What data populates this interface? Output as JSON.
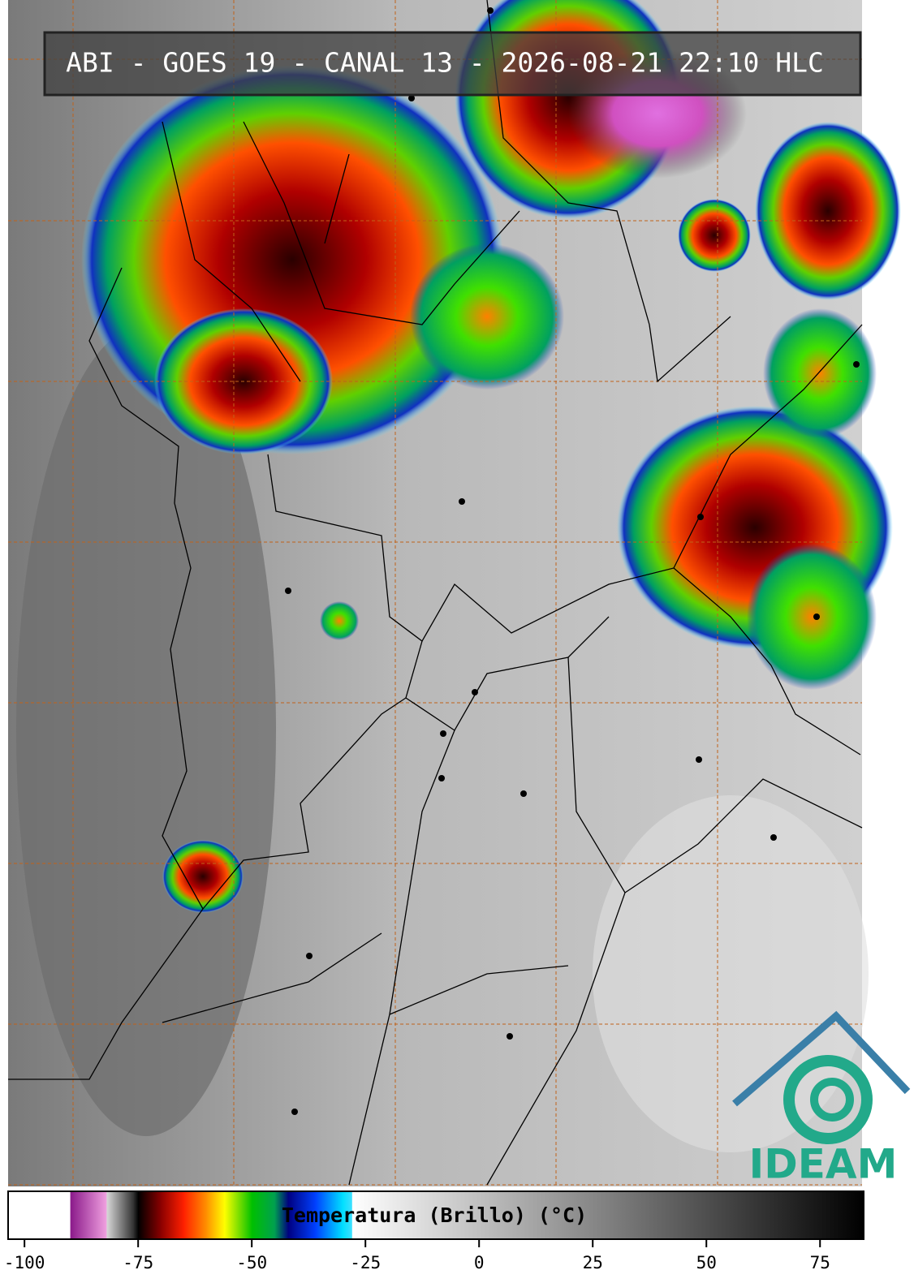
{
  "title": "ABI - GOES 19 - CANAL 13 - 2026-08-21 22:10 HLC",
  "colorbar": {
    "label": "Temperatura (Brillo) (°C)",
    "xlim": [
      -103.6,
      84.6
    ],
    "xticks": [
      -100,
      -75,
      -50,
      -25,
      0,
      25,
      50,
      75
    ],
    "colorscale": [
      {
        "value": -103.6,
        "color": "#ffffff"
      },
      {
        "value": -90,
        "color": "#ffffff"
      },
      {
        "value": -89.9,
        "color": "#8a1a8a"
      },
      {
        "value": -82,
        "color": "#f0a0e0"
      },
      {
        "value": -81.9,
        "color": "#d8d8d8"
      },
      {
        "value": -76,
        "color": "#303030"
      },
      {
        "value": -75,
        "color": "#000000"
      },
      {
        "value": -70,
        "color": "#8b0000"
      },
      {
        "value": -65,
        "color": "#ff2000"
      },
      {
        "value": -60,
        "color": "#ff9000"
      },
      {
        "value": -56,
        "color": "#ffff00"
      },
      {
        "value": -50,
        "color": "#00c000"
      },
      {
        "value": -45,
        "color": "#00a050"
      },
      {
        "value": -42,
        "color": "#000080"
      },
      {
        "value": -36,
        "color": "#0040ff"
      },
      {
        "value": -30,
        "color": "#00e0ff"
      },
      {
        "value": -28,
        "color": "#40e0ff"
      },
      {
        "value": -27.9,
        "color": "#ffffff"
      },
      {
        "value": 84.6,
        "color": "#000000"
      }
    ]
  },
  "logo": {
    "text": "IDEAM"
  }
}
